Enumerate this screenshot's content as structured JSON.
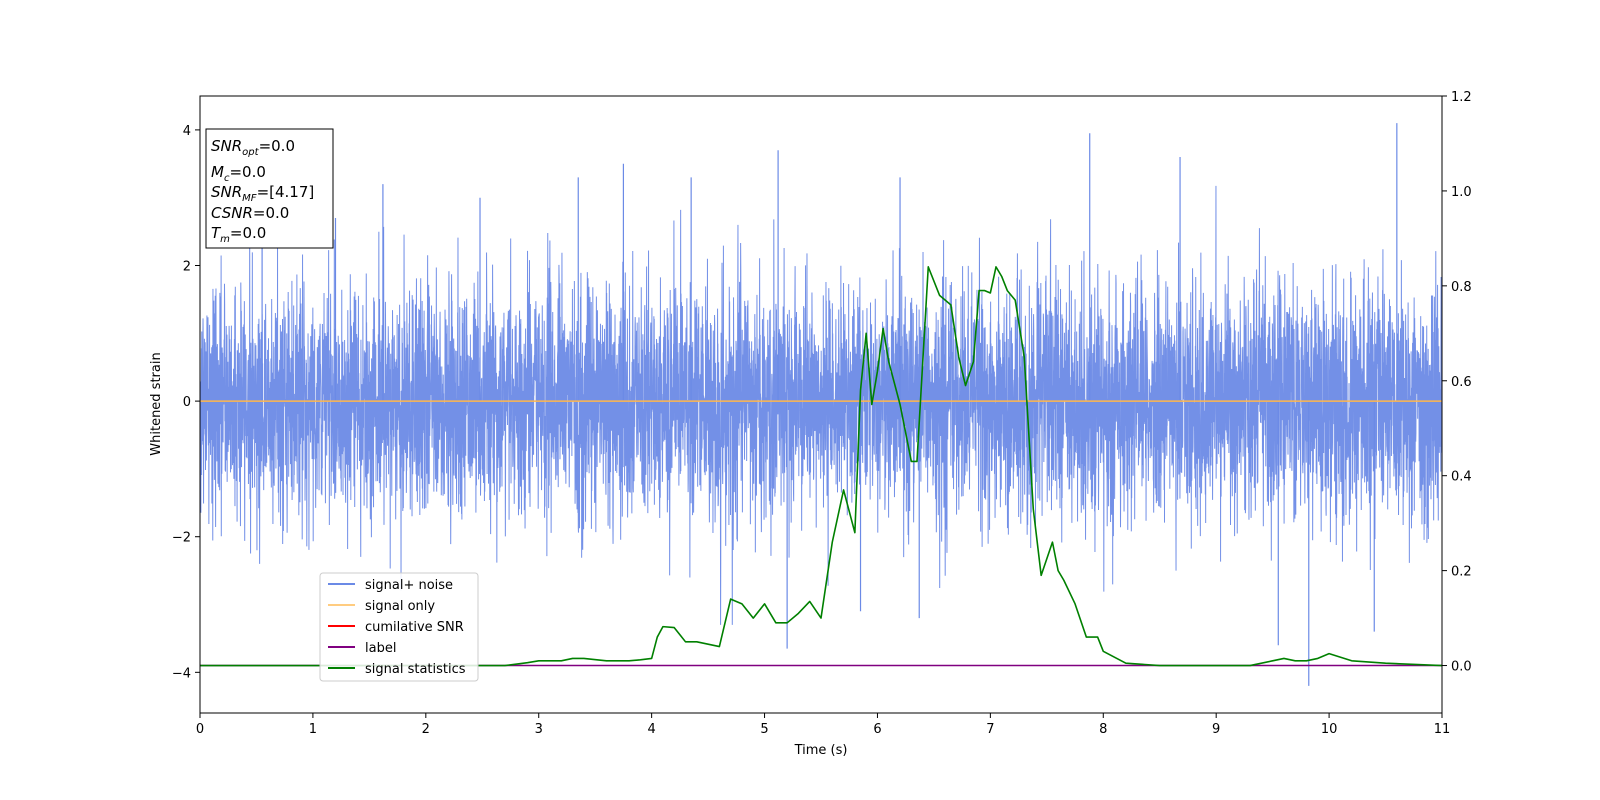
{
  "chart_data": {
    "type": "line",
    "xlabel": "Time (s)",
    "ylabel": "Whitened strain",
    "xlim": [
      0,
      11
    ],
    "ylim": [
      -4.6,
      4.5
    ],
    "y2lim": [
      -0.1,
      1.2
    ],
    "x_ticks": [
      0,
      1,
      2,
      3,
      4,
      5,
      6,
      7,
      8,
      9,
      10,
      11
    ],
    "y_ticks": [
      -4,
      -2,
      0,
      2,
      4
    ],
    "y2_ticks": [
      0.0,
      0.2,
      0.4,
      0.6,
      0.8,
      1.0,
      1.2
    ],
    "x_tick_labels": [
      "0",
      "1",
      "2",
      "3",
      "4",
      "5",
      "6",
      "7",
      "8",
      "9",
      "10",
      "11"
    ],
    "y_tick_labels": [
      "−4",
      "−2",
      "0",
      "2",
      "4"
    ],
    "y2_tick_labels": [
      "0.0",
      "0.2",
      "0.4",
      "0.6",
      "0.8",
      "1.0",
      "1.2"
    ],
    "grid": false,
    "legend_placement": "lower-left",
    "annotation": [
      {
        "base": "SNR",
        "sub": "opt",
        "value": "=0.0"
      },
      {
        "base": "M",
        "sub": "c",
        "value": "=0.0"
      },
      {
        "base": "SNR",
        "sub": "MF",
        "value": "=[4.17]"
      },
      {
        "base": "CSNR",
        "sub": "",
        "value": "=0.0"
      },
      {
        "base": "T",
        "sub": "m",
        "value": "=0.0"
      }
    ],
    "series": [
      {
        "name": "signal+ noise",
        "axis": "left",
        "color": "#6b8ae6",
        "style": "noise",
        "approx_std": 0.85,
        "spikes": [
          [
            0.55,
            2.8
          ],
          [
            1.2,
            2.7
          ],
          [
            1.62,
            3.2
          ],
          [
            2.48,
            3.0
          ],
          [
            3.35,
            3.3
          ],
          [
            3.75,
            3.5
          ],
          [
            4.35,
            3.3
          ],
          [
            5.12,
            3.7
          ],
          [
            5.2,
            -3.65
          ],
          [
            5.85,
            -3.1
          ],
          [
            6.2,
            3.3
          ],
          [
            6.37,
            -3.2
          ],
          [
            7.88,
            3.95
          ],
          [
            8.68,
            3.6
          ],
          [
            9.55,
            -3.6
          ],
          [
            9.82,
            -4.2
          ],
          [
            10.4,
            -3.4
          ],
          [
            10.6,
            4.1
          ]
        ]
      },
      {
        "name": "signal only",
        "axis": "left",
        "color": "#ffb74d",
        "x": [
          0,
          11
        ],
        "y": [
          0,
          0
        ]
      },
      {
        "name": "cumilative SNR",
        "axis": "right",
        "color": "#ff0000",
        "x": [],
        "y": []
      },
      {
        "name": "label",
        "axis": "right",
        "color": "#800080",
        "x": [
          0,
          11
        ],
        "y": [
          0,
          0
        ]
      },
      {
        "name": "signal statistics",
        "axis": "right",
        "color": "#008000",
        "x": [
          0,
          0.5,
          1.0,
          1.5,
          2.0,
          2.5,
          2.7,
          2.9,
          3.0,
          3.2,
          3.3,
          3.4,
          3.6,
          3.8,
          3.9,
          4.0,
          4.05,
          4.1,
          4.2,
          4.3,
          4.4,
          4.5,
          4.6,
          4.7,
          4.8,
          4.9,
          5.0,
          5.1,
          5.2,
          5.3,
          5.4,
          5.5,
          5.6,
          5.7,
          5.8,
          5.85,
          5.9,
          5.95,
          6.0,
          6.05,
          6.1,
          6.2,
          6.3,
          6.35,
          6.45,
          6.55,
          6.65,
          6.72,
          6.78,
          6.85,
          6.9,
          6.95,
          7.0,
          7.05,
          7.1,
          7.15,
          7.22,
          7.3,
          7.38,
          7.45,
          7.55,
          7.6,
          7.65,
          7.75,
          7.85,
          7.95,
          8.0,
          8.2,
          8.5,
          9.0,
          9.3,
          9.5,
          9.6,
          9.7,
          9.8,
          9.9,
          10.0,
          10.2,
          10.5,
          11.0
        ],
        "y": [
          0.0,
          0.0,
          0.0,
          0.0,
          0.0,
          0.0,
          0.0,
          0.006,
          0.01,
          0.01,
          0.015,
          0.015,
          0.01,
          0.01,
          0.012,
          0.015,
          0.06,
          0.082,
          0.08,
          0.05,
          0.05,
          0.045,
          0.04,
          0.14,
          0.13,
          0.1,
          0.13,
          0.09,
          0.09,
          0.11,
          0.135,
          0.1,
          0.26,
          0.37,
          0.28,
          0.58,
          0.7,
          0.55,
          0.62,
          0.71,
          0.64,
          0.55,
          0.43,
          0.43,
          0.84,
          0.78,
          0.76,
          0.65,
          0.59,
          0.64,
          0.79,
          0.79,
          0.785,
          0.84,
          0.82,
          0.79,
          0.77,
          0.65,
          0.33,
          0.19,
          0.26,
          0.2,
          0.18,
          0.13,
          0.06,
          0.06,
          0.03,
          0.005,
          0.0,
          0.0,
          0.0,
          0.01,
          0.015,
          0.01,
          0.01,
          0.015,
          0.025,
          0.01,
          0.005,
          0.0
        ]
      }
    ]
  }
}
